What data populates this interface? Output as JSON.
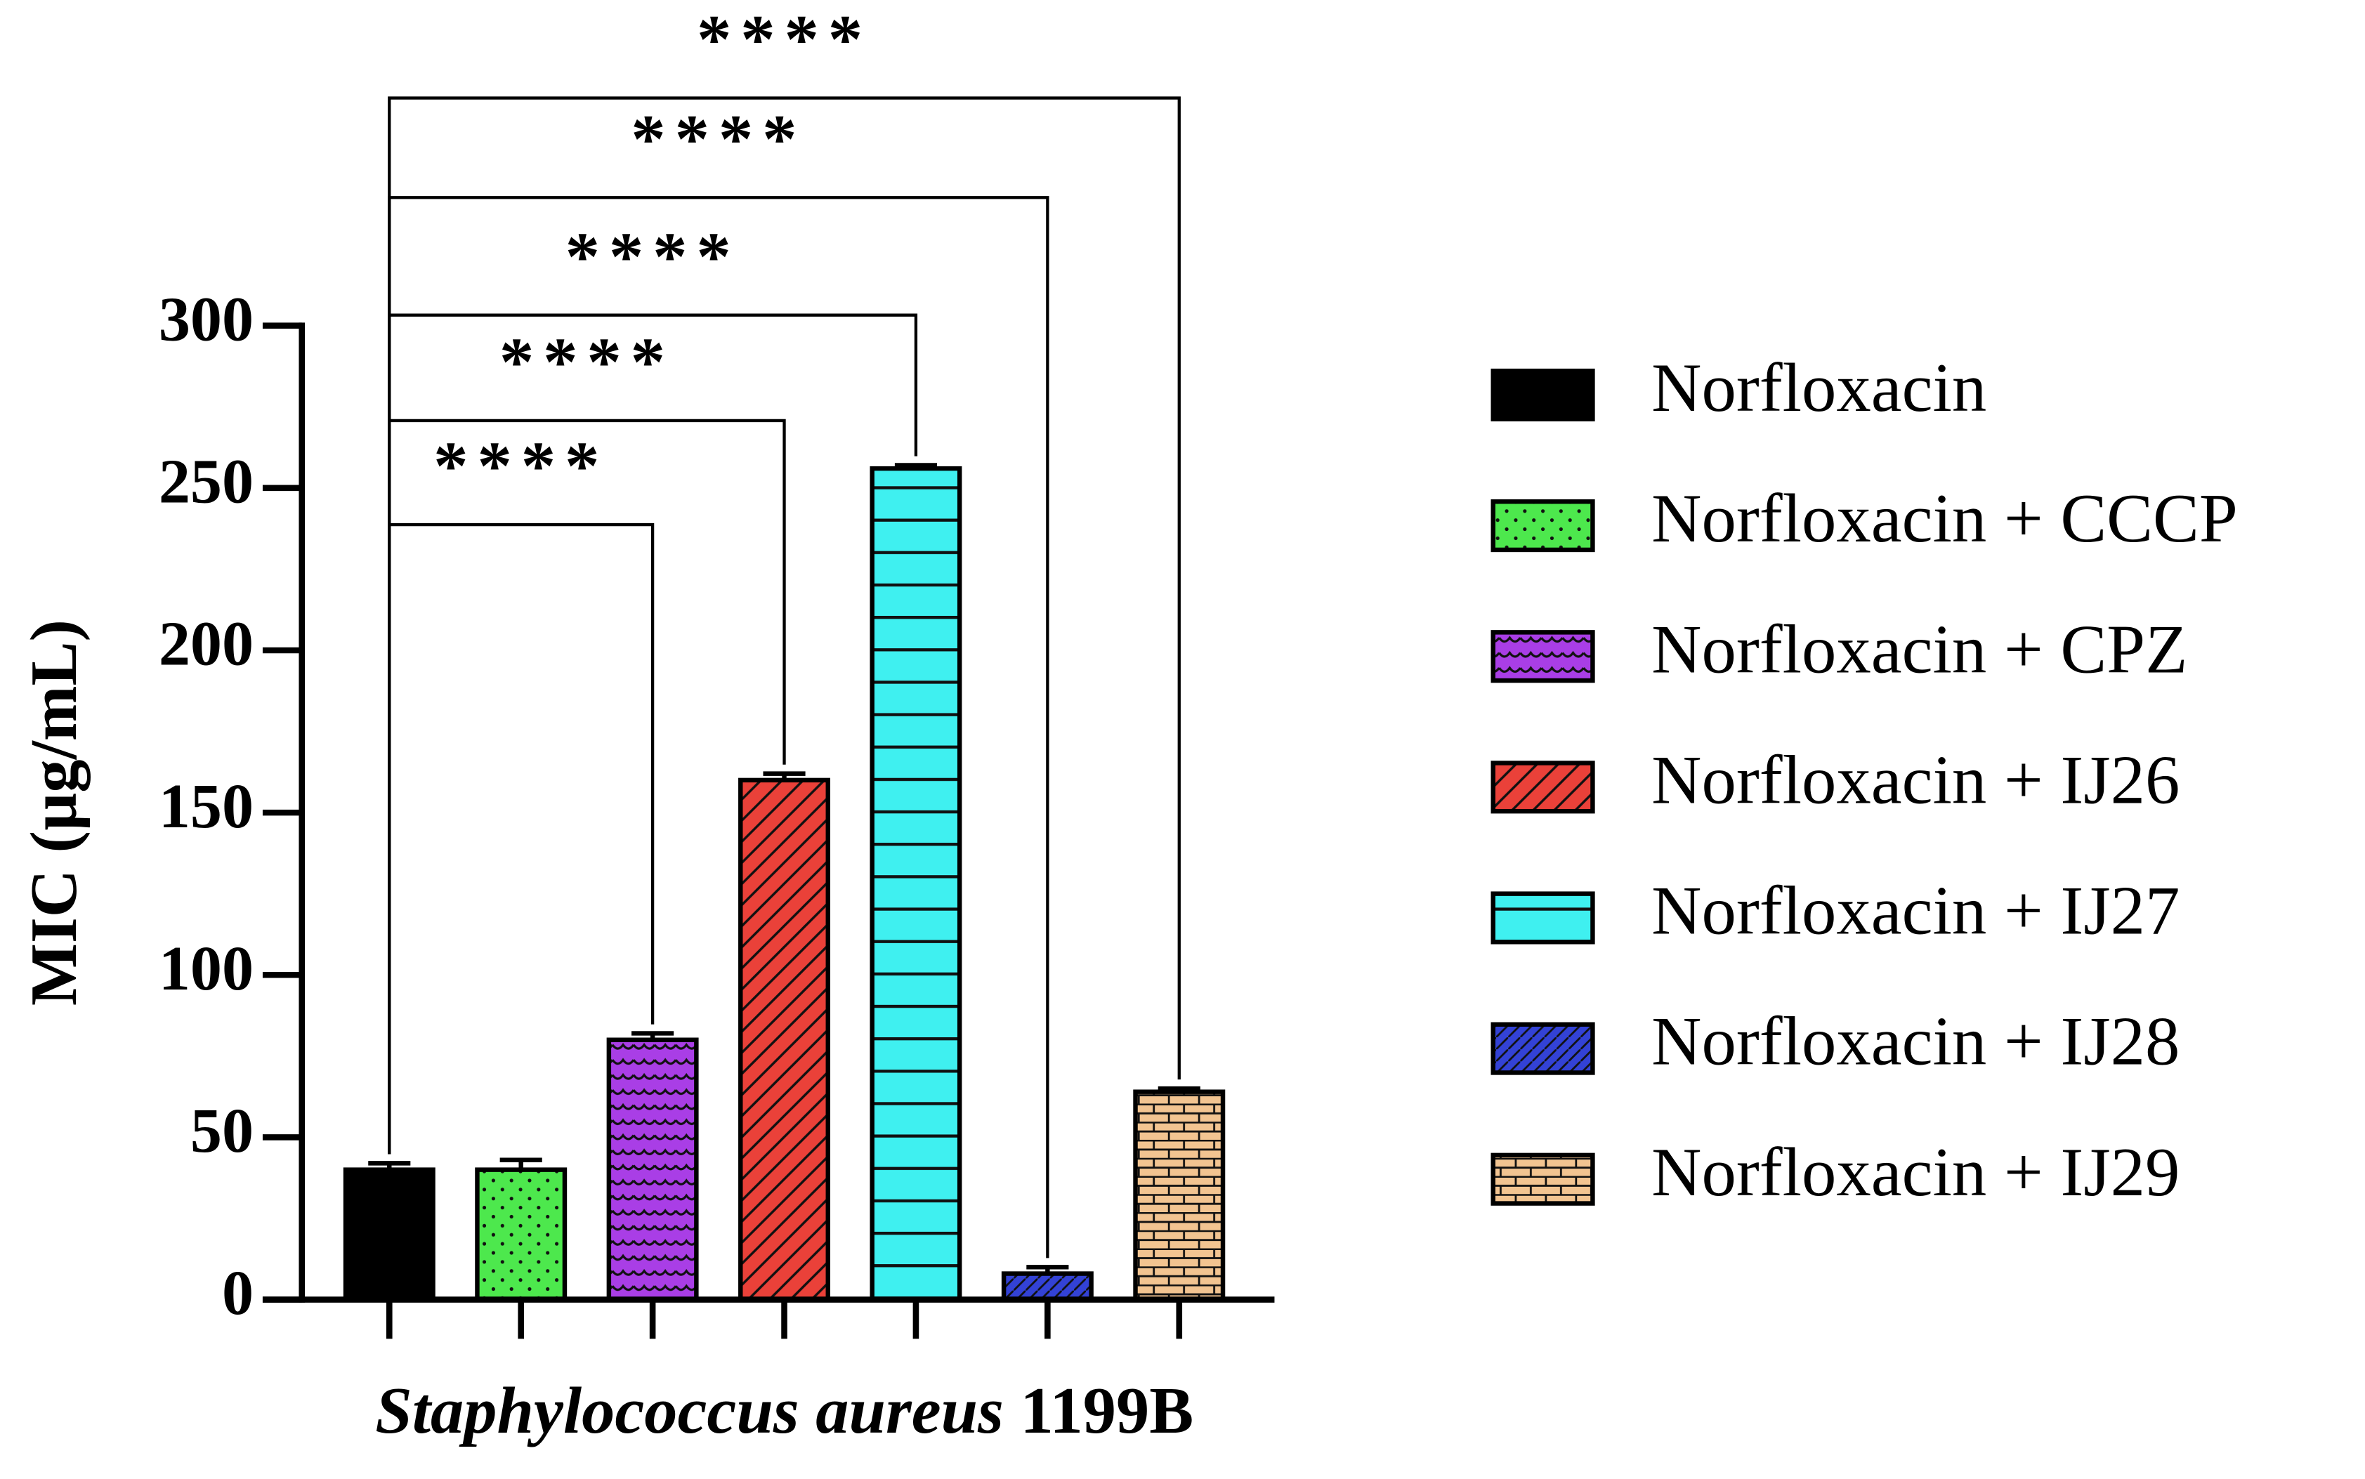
{
  "chart_data": {
    "type": "bar",
    "ylabel": "MIC (µg/mL)",
    "xlabel": [
      "Staphylococcus aureus",
      "1199B"
    ],
    "ylim": [
      0,
      300
    ],
    "yticks": [
      0,
      50,
      100,
      150,
      200,
      250,
      300
    ],
    "series": [
      {
        "name": "Norfloxacin",
        "color": "#000000",
        "pattern": "solid",
        "values": [
          40
        ],
        "errors": [
          2
        ]
      },
      {
        "name": "Norfloxacin + CCCP",
        "color": "#4de84d",
        "pattern": "dots",
        "values": [
          40
        ],
        "errors": [
          3
        ]
      },
      {
        "name": "Norfloxacin + CPZ",
        "color": "#a93ee6",
        "pattern": "waves",
        "values": [
          80
        ],
        "errors": [
          2
        ]
      },
      {
        "name": "Norfloxacin + IJ26",
        "color": "#ea4139",
        "pattern": "diagonal",
        "values": [
          160
        ],
        "errors": [
          2
        ]
      },
      {
        "name": "Norfloxacin + IJ27",
        "color": "#3ff0f0",
        "pattern": "horizontal",
        "values": [
          256
        ],
        "errors": [
          1
        ]
      },
      {
        "name": "Norfloxacin + IJ28",
        "color": "#3342d6",
        "pattern": "crosshatch",
        "values": [
          8
        ],
        "errors": [
          2
        ]
      },
      {
        "name": "Norfloxacin + IJ29",
        "color": "#f2c491",
        "pattern": "brick",
        "values": [
          64
        ],
        "errors": [
          1
        ]
      }
    ],
    "comparisons": [
      {
        "text": "****",
        "groups": [
          "Norfloxacin",
          "Norfloxacin + CPZ"
        ]
      },
      {
        "text": "****",
        "groups": [
          "Norfloxacin",
          "Norfloxacin + IJ26"
        ]
      },
      {
        "text": "****",
        "groups": [
          "Norfloxacin",
          "Norfloxacin + IJ27"
        ]
      },
      {
        "text": "****",
        "groups": [
          "Norfloxacin",
          "Norfloxacin + IJ28"
        ]
      },
      {
        "text": "****",
        "groups": [
          "Norfloxacin",
          "Norfloxacin + IJ29"
        ]
      }
    ]
  }
}
